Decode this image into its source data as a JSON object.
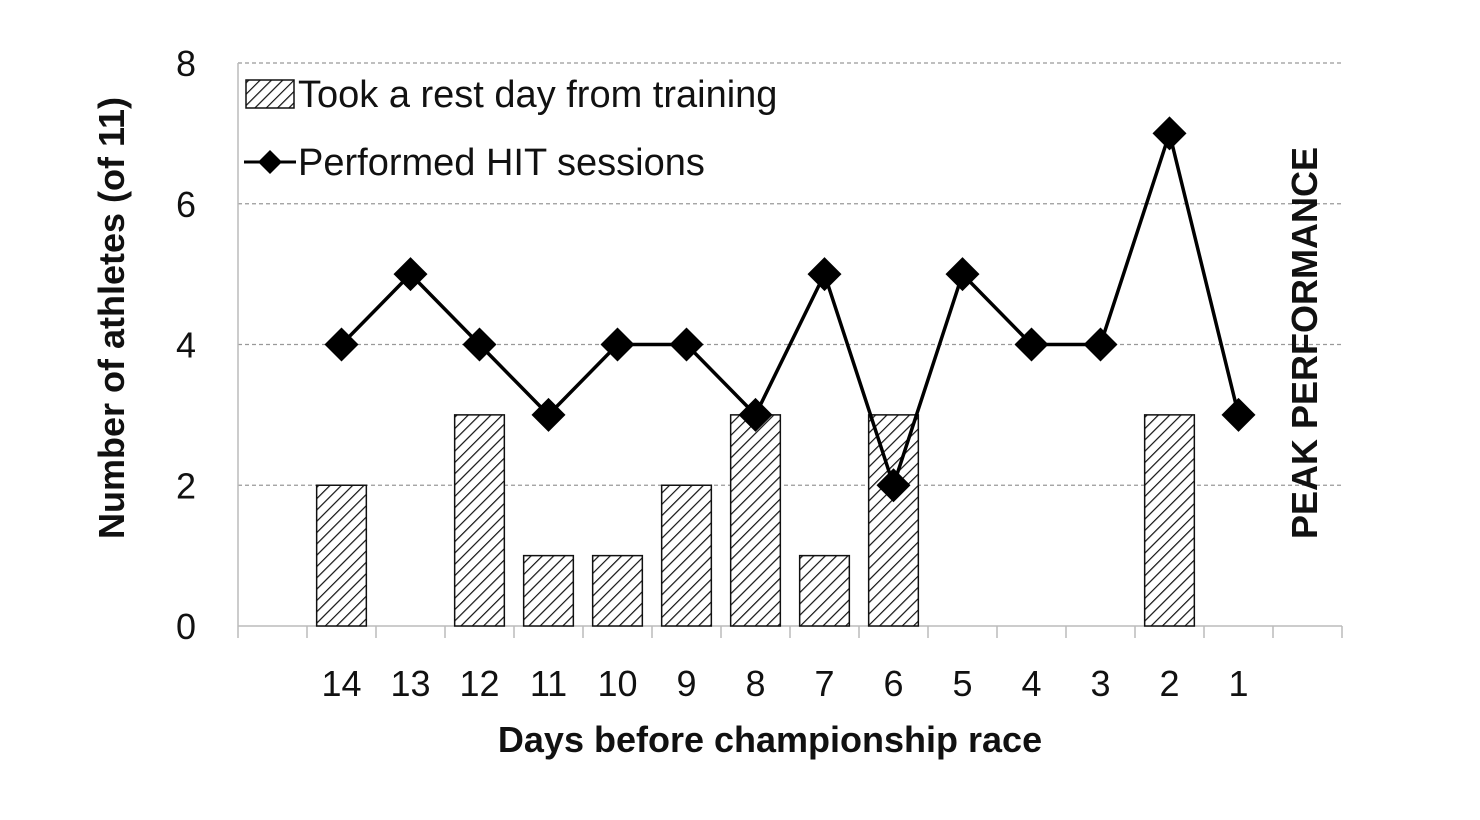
{
  "chart_data": {
    "type": "bar",
    "categories": [
      "14",
      "13",
      "12",
      "11",
      "10",
      "9",
      "8",
      "7",
      "6",
      "5",
      "4",
      "3",
      "2",
      "1"
    ],
    "series": [
      {
        "name": "Took a rest day from training",
        "type": "bar",
        "pattern": "diagonal-hatch",
        "values": [
          2,
          0,
          3,
          1,
          1,
          2,
          3,
          1,
          3,
          0,
          0,
          0,
          3,
          0
        ]
      },
      {
        "name": "Performed HIT sessions",
        "type": "line",
        "marker": "diamond",
        "values": [
          4,
          5,
          4,
          3,
          4,
          4,
          3,
          5,
          2,
          5,
          4,
          4,
          7,
          3
        ]
      }
    ],
    "xlabel": "Days before championship race",
    "ylabel": "Number of athletes (of 11)",
    "ylim": [
      0,
      8
    ],
    "yticks": [
      "0",
      "2",
      "4",
      "6",
      "8"
    ],
    "grid": "horizontal dashed",
    "legend_position": "top-left",
    "annotation": "PEAK PERFORMANCE",
    "colors": {
      "bar_fill": "#ffffff",
      "hatch": "#111111",
      "line": "#000000",
      "grid": "#999999"
    }
  }
}
